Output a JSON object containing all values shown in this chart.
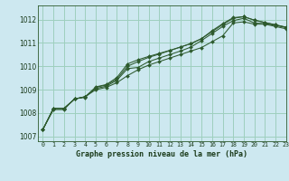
{
  "title": "Graphe pression niveau de la mer (hPa)",
  "bg_color": "#cde8f0",
  "grid_color": "#9ecfbe",
  "line_color": "#2d5a2d",
  "text_color": "#1a3a1a",
  "xlim": [
    -0.5,
    23
  ],
  "ylim": [
    1006.8,
    1012.6
  ],
  "yticks": [
    1007,
    1008,
    1009,
    1010,
    1011,
    1012
  ],
  "xticks": [
    0,
    1,
    2,
    3,
    4,
    5,
    6,
    7,
    8,
    9,
    10,
    11,
    12,
    13,
    14,
    15,
    16,
    17,
    18,
    19,
    20,
    21,
    22,
    23
  ],
  "series": [
    [
      1007.3,
      1008.2,
      1008.2,
      1008.6,
      1008.7,
      1009.0,
      1009.1,
      1009.3,
      1009.6,
      1009.85,
      1010.05,
      1010.2,
      1010.35,
      1010.5,
      1010.65,
      1010.8,
      1011.05,
      1011.3,
      1011.85,
      1011.9,
      1011.8,
      1011.8,
      1011.7,
      1011.6
    ],
    [
      1007.3,
      1008.2,
      1008.2,
      1008.6,
      1008.7,
      1009.05,
      1009.15,
      1009.4,
      1009.9,
      1009.95,
      1010.2,
      1010.35,
      1010.5,
      1010.65,
      1010.82,
      1011.1,
      1011.4,
      1011.7,
      1011.95,
      1012.05,
      1011.85,
      1011.82,
      1011.75,
      1011.65
    ],
    [
      1007.3,
      1008.2,
      1008.2,
      1008.6,
      1008.7,
      1009.1,
      1009.2,
      1009.45,
      1010.0,
      1010.2,
      1010.38,
      1010.52,
      1010.67,
      1010.82,
      1010.97,
      1011.18,
      1011.48,
      1011.78,
      1012.05,
      1012.12,
      1011.97,
      1011.87,
      1011.77,
      1011.67
    ],
    [
      1007.3,
      1008.15,
      1008.15,
      1008.62,
      1008.67,
      1009.12,
      1009.22,
      1009.52,
      1010.1,
      1010.28,
      1010.42,
      1010.55,
      1010.68,
      1010.82,
      1010.97,
      1011.18,
      1011.52,
      1011.82,
      1012.08,
      1012.12,
      1011.97,
      1011.87,
      1011.77,
      1011.67
    ]
  ]
}
